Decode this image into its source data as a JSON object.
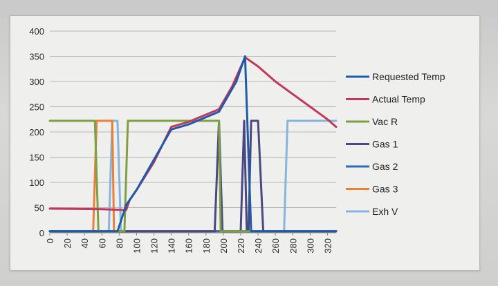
{
  "chart_data": {
    "type": "line",
    "title": "",
    "xlabel": "",
    "ylabel": "",
    "xlim": [
      0,
      330
    ],
    "ylim": [
      0,
      400
    ],
    "x_ticks": [
      "0",
      "20",
      "40",
      "60",
      "80",
      "100",
      "120",
      "140",
      "160",
      "180",
      "200",
      "220",
      "240",
      "260",
      "280",
      "300",
      "320"
    ],
    "y_ticks": [
      "0",
      "50",
      "100",
      "150",
      "200",
      "250",
      "300",
      "350",
      "400"
    ],
    "grid": "horizontal",
    "legend_position": "right",
    "series": [
      {
        "name": "Requested Temp",
        "color": "#1f5aa8",
        "points": [
          [
            0,
            3
          ],
          [
            78,
            3
          ],
          [
            88,
            55
          ],
          [
            100,
            85
          ],
          [
            140,
            205
          ],
          [
            160,
            215
          ],
          [
            195,
            240
          ],
          [
            215,
            300
          ],
          [
            225,
            350
          ],
          [
            232,
            3
          ],
          [
            330,
            3
          ]
        ]
      },
      {
        "name": "Actual Temp",
        "color": "#c0385a",
        "points": [
          [
            0,
            48
          ],
          [
            60,
            47
          ],
          [
            88,
            45
          ],
          [
            92,
            65
          ],
          [
            100,
            85
          ],
          [
            120,
            140
          ],
          [
            140,
            210
          ],
          [
            160,
            220
          ],
          [
            195,
            245
          ],
          [
            210,
            290
          ],
          [
            225,
            348
          ],
          [
            240,
            330
          ],
          [
            260,
            300
          ],
          [
            280,
            275
          ],
          [
            300,
            250
          ],
          [
            320,
            225
          ],
          [
            330,
            210
          ]
        ]
      },
      {
        "name": "Vac R",
        "color": "#7ca044",
        "points": [
          [
            0,
            222
          ],
          [
            52,
            222
          ],
          [
            56,
            3
          ],
          [
            86,
            3
          ],
          [
            90,
            222
          ],
          [
            195,
            222
          ],
          [
            197,
            3
          ],
          [
            330,
            3
          ]
        ]
      },
      {
        "name": "Gas 1",
        "color": "#4b4780",
        "points": [
          [
            0,
            3
          ],
          [
            190,
            3
          ],
          [
            195,
            222
          ],
          [
            199,
            3
          ],
          [
            220,
            3
          ],
          [
            224,
            222
          ],
          [
            227,
            3
          ],
          [
            229,
            3
          ],
          [
            232,
            222
          ],
          [
            240,
            222
          ],
          [
            246,
            3
          ],
          [
            330,
            3
          ]
        ]
      },
      {
        "name": "Gas 2",
        "color": "#2a6db5",
        "points": [
          [
            0,
            3
          ],
          [
            330,
            3
          ]
        ]
      },
      {
        "name": "Gas 3",
        "color": "#e8803a",
        "points": [
          [
            0,
            3
          ],
          [
            50,
            3
          ],
          [
            54,
            222
          ],
          [
            72,
            222
          ],
          [
            74,
            3
          ],
          [
            330,
            3
          ]
        ]
      },
      {
        "name": "Exh V",
        "color": "#85b5dc",
        "points": [
          [
            0,
            3
          ],
          [
            68,
            3
          ],
          [
            72,
            222
          ],
          [
            78,
            222
          ],
          [
            82,
            3
          ],
          [
            270,
            3
          ],
          [
            274,
            222
          ],
          [
            330,
            222
          ]
        ]
      }
    ]
  }
}
